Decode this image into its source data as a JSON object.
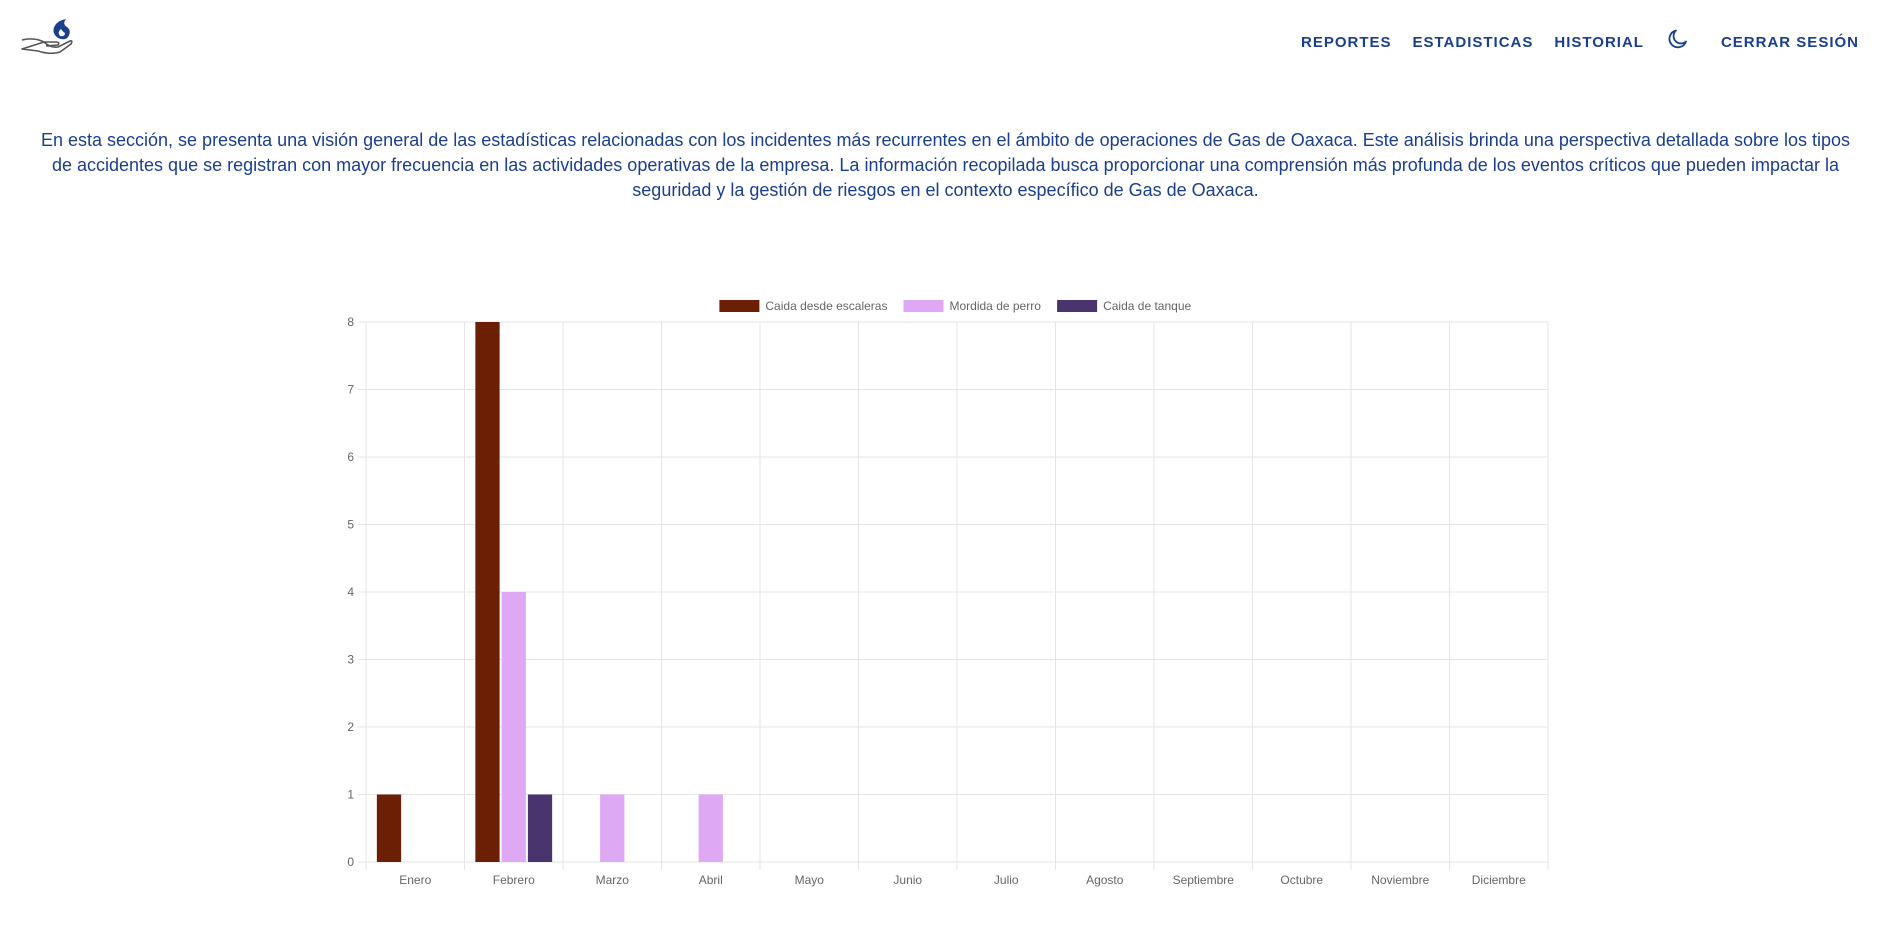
{
  "nav": {
    "reportes": "REPORTES",
    "estadisticas": "ESTADISTICAS",
    "historial": "HISTORIAL",
    "cerrar_sesion": "CERRAR SESIÓN",
    "theme_icon": "moon-icon",
    "logo_icon": "hand-flame-logo-icon"
  },
  "intro_text": "En esta sección, se presenta una visión general de las estadísticas relacionadas con los incidentes más recurrentes en el ámbito de operaciones de Gas de Oaxaca. Este análisis brinda una perspectiva detallada sobre los tipos de accidentes que se registran con mayor frecuencia en las actividades operativas de la empresa. La información recopilada busca proporcionar una comprensión más profunda de los eventos críticos que pueden impactar la seguridad y la gestión de riesgos en el contexto específico de Gas de Oaxaca.",
  "colors": {
    "brand": "#1a3f8f",
    "grid": "#e5e5e5",
    "axis_text": "#666666"
  },
  "chart_data": {
    "type": "bar",
    "title": "",
    "xlabel": "",
    "ylabel": "",
    "ylim": [
      0,
      8
    ],
    "yticks": [
      0,
      1,
      2,
      3,
      4,
      5,
      6,
      7,
      8
    ],
    "grid": true,
    "legend_position": "top",
    "categories": [
      "Enero",
      "Febrero",
      "Marzo",
      "Abril",
      "Mayo",
      "Junio",
      "Julio",
      "Agosto",
      "Septiembre",
      "Octubre",
      "Noviembre",
      "Diciembre"
    ],
    "series": [
      {
        "name": "Caida desde escaleras",
        "color": "#6b1f04",
        "values": [
          1,
          8,
          0,
          0,
          0,
          0,
          0,
          0,
          0,
          0,
          0,
          0
        ]
      },
      {
        "name": "Mordida de perro",
        "color": "#dfa8f5",
        "values": [
          0,
          4,
          1,
          1,
          0,
          0,
          0,
          0,
          0,
          0,
          0,
          0
        ]
      },
      {
        "name": "Caida de tanque",
        "color": "#4a346e",
        "values": [
          0,
          1,
          0,
          0,
          0,
          0,
          0,
          0,
          0,
          0,
          0,
          0
        ]
      }
    ]
  }
}
